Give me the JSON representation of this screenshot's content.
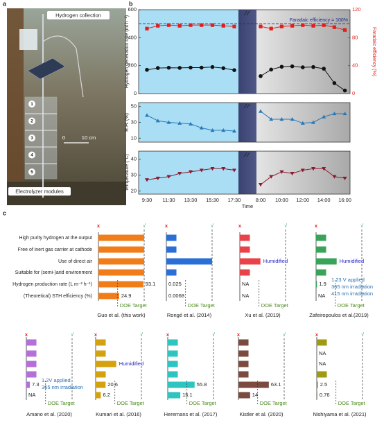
{
  "panel_labels": [
    "a",
    "b",
    "c"
  ],
  "photo": {
    "top_label": "Hydrogen collection",
    "bottom_label": "Electrolyzer modules",
    "scale_start": 0,
    "scale_end": "10 cm",
    "modules": [
      1,
      2,
      3,
      4,
      5
    ]
  },
  "chart_data": {
    "type": "line",
    "x_label": "Time",
    "categories": [
      [
        "9:30",
        null,
        "11:30",
        null,
        "13:30",
        null,
        "15:30",
        null,
        "17:30"
      ],
      [
        "8:00",
        null,
        "10:00",
        null,
        "12:00",
        null,
        "14:00",
        null,
        "16:00"
      ]
    ],
    "panels": [
      {
        "y_label": "Hydrogen generation rate (ml h⁻¹)",
        "ylim": [
          0,
          600
        ],
        "yticks": [
          0,
          200,
          400,
          600
        ],
        "y2_label": "Faradaic efficiency (%)",
        "y2lim": [
          0,
          120
        ],
        "y2ticks": [
          0,
          40,
          80,
          120
        ],
        "reference": {
          "value": 100,
          "axis": "y2",
          "label": "Faradaic efficiency = 100%",
          "color": "#1a2a8a"
        },
        "series": [
          {
            "color": "#111111",
            "marker": "circle",
            "values": [
              [
                170,
                183,
                185,
                184,
                186,
                186,
                190,
                182,
                168
              ],
              [
                125,
                172,
                192,
                195,
                188,
                190,
                178,
                75,
                22
              ]
            ]
          },
          {
            "color": "#e0201b",
            "marker": "square",
            "axis": "y2",
            "values": [
              [
                93,
                97,
                98,
                97,
                98,
                98,
                98,
                97,
                96
              ],
              [
                96,
                93,
                96,
                97,
                98,
                97,
                98,
                95,
                91
              ]
            ]
          }
        ]
      },
      {
        "y_label": "R.H. (%)",
        "ylim": [
          5,
          55
        ],
        "yticks": [
          10,
          30,
          50
        ],
        "series": [
          {
            "color": "#2a7ab8",
            "marker": "triangle",
            "values": [
              [
                39,
                32,
                30,
                29,
                28,
                23,
                20,
                20,
                19
              ],
              [
                44,
                34,
                34,
                34,
                29,
                30,
                37,
                41,
                41
              ]
            ]
          }
        ]
      },
      {
        "y_label": "Temperature (°C)",
        "ylim": [
          18,
          45
        ],
        "yticks": [
          20,
          30,
          40
        ],
        "series": [
          {
            "color": "#8b1a2e",
            "marker": "triangle-down",
            "values": [
              [
                27,
                28,
                29,
                31,
                32,
                33,
                34,
                34,
                33
              ],
              [
                24,
                29,
                32,
                31,
                33,
                34,
                34,
                29,
                28
              ]
            ]
          }
        ]
      }
    ]
  },
  "comparison": {
    "criteria": [
      "High purity hydrogen at the output",
      "Free of inert gas carrier at cathode",
      "Use of direct air",
      "Suitable for (semi-)arid environment"
    ],
    "metrics": [
      "Hydrogen production rate (L m⁻² h⁻¹)",
      "(Theoretical) STH efficiency (%)"
    ],
    "metric_xlims": [
      [
        0,
        95
      ],
      [
        0,
        55
      ]
    ],
    "fail_mark": "x",
    "pass_mark": "√",
    "target_label": "DOE Target",
    "studies": [
      {
        "name": "Guo et al. (this work)",
        "color": "#f07d1a",
        "criteria": [
          true,
          true,
          true,
          true
        ],
        "values": [
          93.1,
          24.9
        ]
      },
      {
        "name": "Rongé et al. (2014)",
        "color": "#2a6fd6",
        "criteria": [
          false,
          false,
          true,
          false
        ],
        "values": [
          0.025,
          0.0068
        ]
      },
      {
        "name": "Xu et al. (2019)",
        "color": "#e8434a",
        "criteria": [
          false,
          false,
          {
            "bar": true,
            "label": "Humidified"
          },
          false
        ],
        "values": [
          null,
          null
        ],
        "value_labels": [
          "NA",
          "NA"
        ]
      },
      {
        "name": "Zafeiropoulos et al.(2019)",
        "color": "#3aa35a",
        "criteria": [
          false,
          false,
          {
            "bar": true,
            "label": "Humidified"
          },
          false
        ],
        "values": [
          1.9,
          null
        ],
        "value_labels": [
          "1.9",
          "NA"
        ],
        "notes": [
          "1.23 V applied",
          "365 nm irradiation",
          "415 nm irradiation"
        ]
      },
      {
        "name": "Amano et al. (2020)",
        "color": "#b56fd9",
        "criteria": [
          false,
          false,
          false,
          false
        ],
        "values": [
          7.3,
          null
        ],
        "value_labels": [
          "7.3",
          "NA"
        ],
        "notes": [
          "1.2V applied",
          "365 nm irradiation"
        ]
      },
      {
        "name": "Kumari et al. (2016)",
        "color": "#d4a20e",
        "criteria": [
          false,
          false,
          {
            "bar": true,
            "label": "Humidified"
          },
          false
        ],
        "values": [
          20.6,
          6.2
        ]
      },
      {
        "name": "Heremans et al. (2017)",
        "color": "#2ec4c0",
        "criteria": [
          false,
          false,
          false,
          false
        ],
        "values": [
          55.8,
          15.1
        ]
      },
      {
        "name": "Kistler et al. (2020)",
        "color": "#7a4b3e",
        "criteria": [
          false,
          false,
          false,
          false
        ],
        "values": [
          63.1,
          14
        ]
      },
      {
        "name": "Nishiyama et al. (2021)",
        "color": "#a09a10",
        "criteria": [
          false,
          {
            "bar": false,
            "label": "NA"
          },
          {
            "bar": false,
            "label": "NA"
          },
          false
        ],
        "values": [
          2.5,
          0.76
        ]
      }
    ]
  }
}
